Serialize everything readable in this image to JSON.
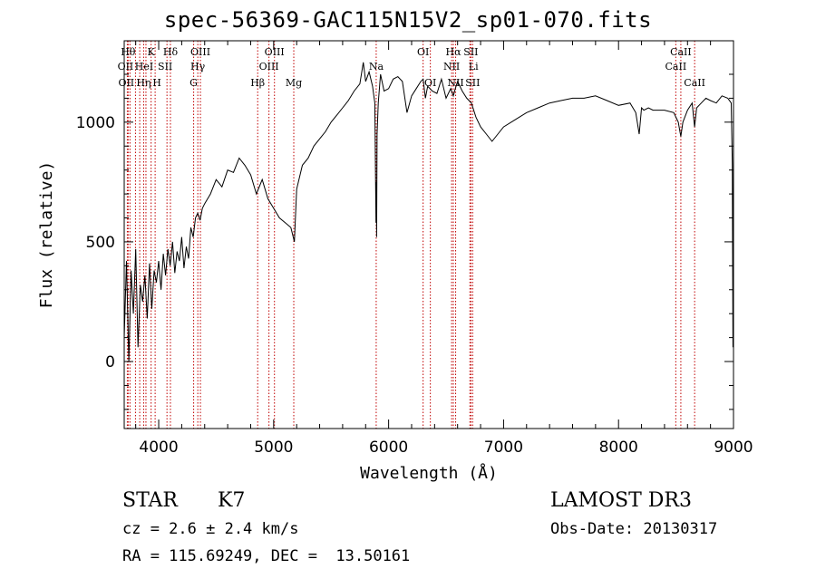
{
  "chart_data": {
    "type": "line",
    "title": "spec-56369-GAC115N15V2_sp01-070.fits",
    "xlabel": "Wavelength (Å)",
    "ylabel": "Flux (relative)",
    "xlim": [
      3700,
      9000
    ],
    "ylim": [
      -280,
      1340
    ],
    "x_ticks": [
      4000,
      5000,
      6000,
      7000,
      8000,
      9000
    ],
    "y_ticks": [
      0,
      500,
      1000
    ],
    "series": [
      {
        "name": "spectrum",
        "x": [
          3700,
          3720,
          3740,
          3760,
          3780,
          3800,
          3820,
          3840,
          3860,
          3880,
          3900,
          3920,
          3940,
          3960,
          3980,
          4000,
          4020,
          4040,
          4060,
          4080,
          4100,
          4120,
          4140,
          4160,
          4180,
          4200,
          4220,
          4240,
          4260,
          4280,
          4300,
          4320,
          4340,
          4360,
          4380,
          4400,
          4450,
          4500,
          4550,
          4600,
          4650,
          4700,
          4750,
          4800,
          4850,
          4900,
          4950,
          5000,
          5050,
          5100,
          5150,
          5180,
          5200,
          5250,
          5300,
          5350,
          5400,
          5450,
          5500,
          5550,
          5600,
          5650,
          5700,
          5750,
          5780,
          5800,
          5830,
          5860,
          5880,
          5890,
          5893,
          5896,
          5900,
          5910,
          5930,
          5960,
          6000,
          6040,
          6080,
          6120,
          6160,
          6200,
          6240,
          6280,
          6300,
          6320,
          6340,
          6380,
          6420,
          6460,
          6500,
          6540,
          6563,
          6580,
          6600,
          6640,
          6680,
          6720,
          6760,
          6800,
          6850,
          6900,
          6950,
          7000,
          7100,
          7200,
          7300,
          7400,
          7500,
          7600,
          7700,
          7800,
          7900,
          8000,
          8100,
          8150,
          8180,
          8200,
          8220,
          8260,
          8300,
          8400,
          8480,
          8500,
          8520,
          8542,
          8560,
          8600,
          8640,
          8662,
          8680,
          8720,
          8760,
          8800,
          8850,
          8900,
          8950,
          8980,
          8990,
          8995,
          9000
        ],
        "y": [
          100,
          420,
          0,
          380,
          200,
          470,
          60,
          320,
          250,
          360,
          180,
          410,
          220,
          380,
          330,
          420,
          300,
          450,
          360,
          470,
          400,
          500,
          370,
          460,
          420,
          520,
          390,
          480,
          430,
          560,
          520,
          600,
          620,
          590,
          640,
          660,
          700,
          760,
          730,
          800,
          790,
          850,
          820,
          780,
          700,
          760,
          680,
          640,
          600,
          580,
          560,
          500,
          720,
          820,
          850,
          900,
          930,
          960,
          1000,
          1030,
          1060,
          1090,
          1130,
          1160,
          1250,
          1170,
          1210,
          1150,
          1080,
          580,
          750,
          520,
          950,
          1080,
          1200,
          1130,
          1140,
          1180,
          1190,
          1170,
          1040,
          1110,
          1140,
          1170,
          1180,
          1100,
          1150,
          1130,
          1120,
          1180,
          1100,
          1140,
          1110,
          1140,
          1170,
          1130,
          1100,
          1080,
          1020,
          980,
          950,
          920,
          950,
          980,
          1010,
          1040,
          1060,
          1080,
          1090,
          1100,
          1100,
          1110,
          1090,
          1070,
          1080,
          1040,
          950,
          1060,
          1050,
          1060,
          1050,
          1050,
          1040,
          1020,
          1000,
          940,
          1000,
          1050,
          1080,
          980,
          1060,
          1080,
          1100,
          1090,
          1080,
          1110,
          1100,
          1080,
          820,
          60,
          1050
        ]
      }
    ],
    "lines": [
      {
        "x": 3750,
        "row": 0,
        "label": "Hθ",
        "dx": -2
      },
      {
        "x": 3727,
        "row": 1,
        "label": "OII",
        "dx": -2
      },
      {
        "x": 3734,
        "row": 2,
        "label": "OII",
        "dx": -2
      },
      {
        "x": 3798,
        "row": 0,
        "label": "",
        "dx": 0
      },
      {
        "x": 3835,
        "row": 0,
        "label": "",
        "dx": 0
      },
      {
        "x": 3889,
        "row": 1,
        "label": "HeI",
        "dx": -2
      },
      {
        "x": 3869,
        "row": 2,
        "label": "Hη",
        "dx": 0
      },
      {
        "x": 3934,
        "row": 0,
        "label": "K",
        "dx": 0
      },
      {
        "x": 3969,
        "row": 2,
        "label": "H",
        "dx": 2
      },
      {
        "x": 4072,
        "row": 1,
        "label": "SII",
        "dx": -2
      },
      {
        "x": 4102,
        "row": 0,
        "label": "Hδ",
        "dx": 0
      },
      {
        "x": 4304,
        "row": 2,
        "label": "G",
        "dx": 0
      },
      {
        "x": 4340,
        "row": 1,
        "label": "Hγ",
        "dx": 0
      },
      {
        "x": 4363,
        "row": 0,
        "label": "OIII",
        "dx": 0
      },
      {
        "x": 4861,
        "row": 2,
        "label": "Hβ",
        "dx": 0
      },
      {
        "x": 4959,
        "row": 1,
        "label": "OIII",
        "dx": 0
      },
      {
        "x": 5007,
        "row": 0,
        "label": "OIII",
        "dx": 0
      },
      {
        "x": 5175,
        "row": 2,
        "label": "Mg",
        "dx": 0
      },
      {
        "x": 5892,
        "row": 1,
        "label": "Na",
        "dx": 0
      },
      {
        "x": 6300,
        "row": 0,
        "label": "OI",
        "dx": 0
      },
      {
        "x": 6363,
        "row": 2,
        "label": "OI",
        "dx": 0
      },
      {
        "x": 6548,
        "row": 1,
        "label": "NII",
        "dx": 0
      },
      {
        "x": 6563,
        "row": 0,
        "label": "Hα",
        "dx": 0
      },
      {
        "x": 6583,
        "row": 2,
        "label": "NII",
        "dx": 0
      },
      {
        "x": 6707,
        "row": 1,
        "label": "Li",
        "dx": 4
      },
      {
        "x": 6716,
        "row": 0,
        "label": "SII",
        "dx": 0
      },
      {
        "x": 6731,
        "row": 2,
        "label": "SII",
        "dx": 0
      },
      {
        "x": 8498,
        "row": 1,
        "label": "CaII",
        "dx": 0
      },
      {
        "x": 8542,
        "row": 0,
        "label": "CaII",
        "dx": 0
      },
      {
        "x": 8662,
        "row": 2,
        "label": "CaII",
        "dx": 0
      }
    ],
    "colors": {
      "spectrum": "#000000",
      "lines": "#c00000",
      "axes": "#000000"
    }
  },
  "footer": {
    "obj_type": "STAR",
    "subclass": "K7",
    "redshift": "cz = 2.6 ± 2.4 km/s",
    "coords": "RA = 115.69249, DEC =  13.50161",
    "survey": "LAMOST DR3",
    "obs_date": "Obs-Date: 20130317"
  }
}
